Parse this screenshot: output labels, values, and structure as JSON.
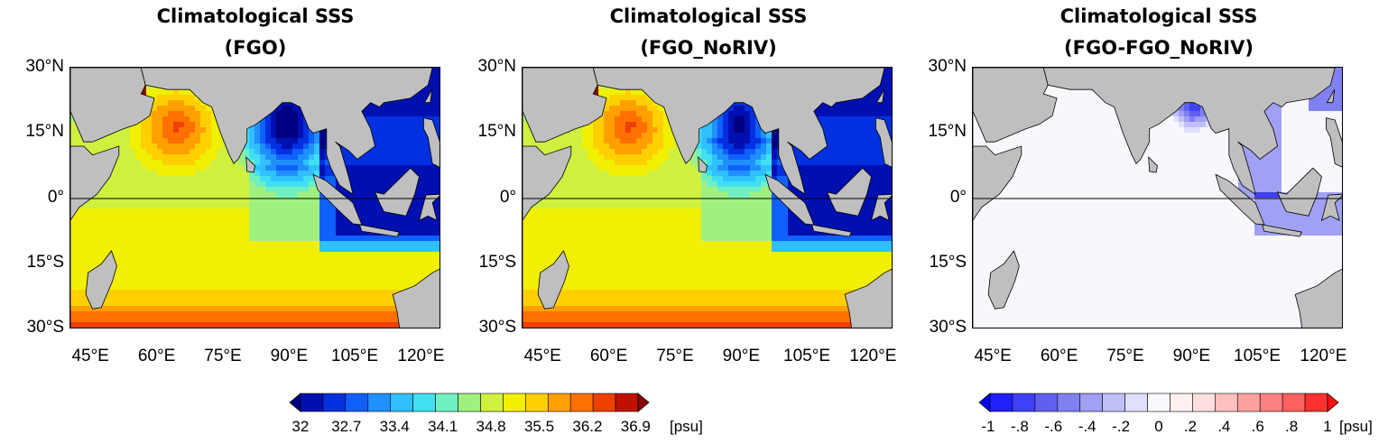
{
  "panels": [
    {
      "title_line1": "Climatological SSS",
      "title_line2": "(FGO)",
      "kind": "sss"
    },
    {
      "title_line1": "Climatological SSS",
      "title_line2": "(FGO_NoRIV)",
      "kind": "sss"
    },
    {
      "title_line1": "Climatological SSS",
      "title_line2": "(FGO-FGO_NoRIV)",
      "kind": "diff"
    }
  ],
  "lat_labels": [
    "30°N",
    "15°N",
    "0°",
    "15°S",
    "30°S"
  ],
  "lon_labels": [
    "45°E",
    "60°E",
    "75°E",
    "90°E",
    "105°E",
    "120°E"
  ],
  "map_extent": {
    "lon": [
      40,
      124
    ],
    "lat": [
      -30,
      30
    ]
  },
  "colorbar_sss": {
    "labels": [
      "32",
      "32.7",
      "33.4",
      "34.1",
      "34.8",
      "35.5",
      "36.2",
      "36.9"
    ],
    "unit": "[psu]",
    "range": [
      32,
      36.9
    ],
    "colors": [
      "#000080",
      "#0010b0",
      "#0030e0",
      "#1060ff",
      "#2090ff",
      "#30c0ff",
      "#40e0f0",
      "#70f0c0",
      "#a0f080",
      "#d0f040",
      "#f0f000",
      "#ffd000",
      "#ffa000",
      "#ff7000",
      "#f04000",
      "#c01000",
      "#8b0000"
    ]
  },
  "colorbar_diff": {
    "labels": [
      "-1",
      "-.8",
      "-.6",
      "-.4",
      "-.2",
      "0",
      ".2",
      ".4",
      ".6",
      ".8",
      "1"
    ],
    "unit": "[psu]",
    "range": [
      -1,
      1
    ],
    "colors": [
      "#0000ff",
      "#2020ff",
      "#4040f8",
      "#6060f0",
      "#8080f0",
      "#a0a0f4",
      "#c0c0f8",
      "#e0e0fc",
      "#f8f8ff",
      "#fff0f0",
      "#ffe0e0",
      "#ffc0c0",
      "#ffa0a0",
      "#ff8080",
      "#ff6060",
      "#ff3030",
      "#ff1010"
    ]
  },
  "colors": {
    "land": "#bfbfbf",
    "equator": "#000000"
  }
}
